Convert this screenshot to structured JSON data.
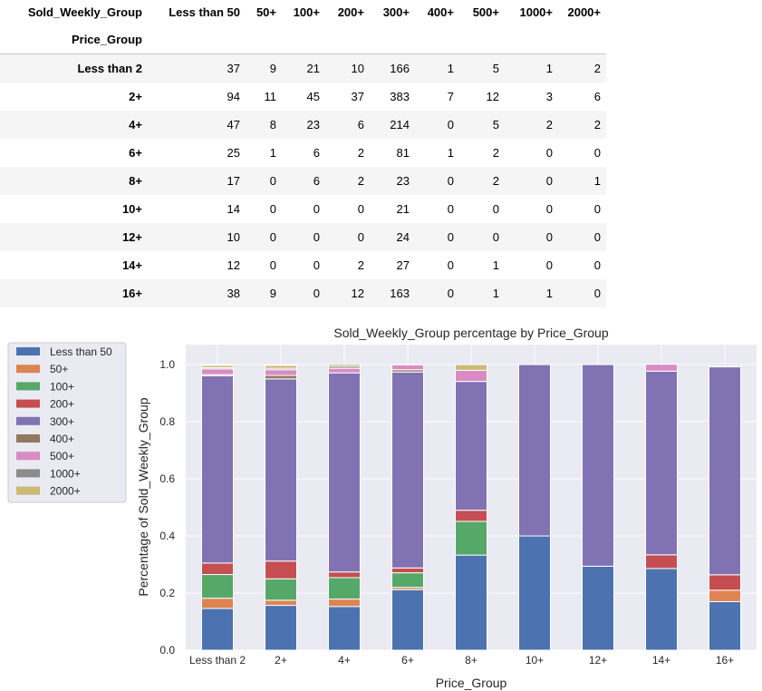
{
  "table": {
    "columns_name": "Sold_Weekly_Group",
    "index_name": "Price_Group",
    "columns": [
      "Less than 50",
      "50+",
      "100+",
      "200+",
      "300+",
      "400+",
      "500+",
      "1000+",
      "2000+"
    ],
    "rows": [
      {
        "label": "Less than 2",
        "values": [
          "37",
          "9",
          "21",
          "10",
          "166",
          "1",
          "5",
          "1",
          "2"
        ]
      },
      {
        "label": "2+",
        "values": [
          "94",
          "11",
          "45",
          "37",
          "383",
          "7",
          "12",
          "3",
          "6"
        ]
      },
      {
        "label": "4+",
        "values": [
          "47",
          "8",
          "23",
          "6",
          "214",
          "0",
          "5",
          "2",
          "2"
        ]
      },
      {
        "label": "6+",
        "values": [
          "25",
          "1",
          "6",
          "2",
          "81",
          "1",
          "2",
          "0",
          "0"
        ]
      },
      {
        "label": "8+",
        "values": [
          "17",
          "0",
          "6",
          "2",
          "23",
          "0",
          "2",
          "0",
          "1"
        ]
      },
      {
        "label": "10+",
        "values": [
          "14",
          "0",
          "0",
          "0",
          "21",
          "0",
          "0",
          "0",
          "0"
        ]
      },
      {
        "label": "12+",
        "values": [
          "10",
          "0",
          "0",
          "0",
          "24",
          "0",
          "0",
          "0",
          "0"
        ]
      },
      {
        "label": "14+",
        "values": [
          "12",
          "0",
          "0",
          "2",
          "27",
          "0",
          "1",
          "0",
          "0"
        ]
      },
      {
        "label": "16+",
        "values": [
          "38",
          "9",
          "0",
          "12",
          "163",
          "0",
          "1",
          "1",
          "0"
        ]
      }
    ]
  },
  "chart_data": {
    "type": "bar",
    "stacked": true,
    "title": "Sold_Weekly_Group percentage by Price_Group",
    "xlabel": "Price_Group",
    "ylabel": "Percentage of Sold_Weekly_Group",
    "ylim": [
      0,
      1.07
    ],
    "yticks": [
      "0.0",
      "0.2",
      "0.4",
      "0.6",
      "0.8",
      "1.0"
    ],
    "grid": true,
    "legend_position": "outside-left",
    "categories": [
      "Less than 2",
      "2+",
      "4+",
      "6+",
      "8+",
      "10+",
      "12+",
      "14+",
      "16+"
    ],
    "series": [
      {
        "name": "Less than 50",
        "color": "#4c72b0",
        "values": [
          0.146,
          0.157,
          0.153,
          0.212,
          0.333,
          0.4,
          0.294,
          0.286,
          0.17
        ]
      },
      {
        "name": "50+",
        "color": "#dd8452",
        "values": [
          0.036,
          0.018,
          0.026,
          0.008,
          0.0,
          0.0,
          0.0,
          0.0,
          0.04
        ]
      },
      {
        "name": "100+",
        "color": "#55a868",
        "values": [
          0.083,
          0.075,
          0.075,
          0.051,
          0.118,
          0.0,
          0.0,
          0.0,
          0.0
        ]
      },
      {
        "name": "200+",
        "color": "#c44e52",
        "values": [
          0.04,
          0.062,
          0.02,
          0.017,
          0.039,
          0.0,
          0.0,
          0.048,
          0.054
        ]
      },
      {
        "name": "300+",
        "color": "#8172b3",
        "values": [
          0.656,
          0.638,
          0.697,
          0.686,
          0.451,
          0.6,
          0.706,
          0.643,
          0.728
        ]
      },
      {
        "name": "400+",
        "color": "#937860",
        "values": [
          0.004,
          0.012,
          0.0,
          0.008,
          0.0,
          0.0,
          0.0,
          0.0,
          0.0
        ]
      },
      {
        "name": "500+",
        "color": "#da8bc3",
        "values": [
          0.02,
          0.02,
          0.016,
          0.017,
          0.039,
          0.0,
          0.0,
          0.024,
          0.004
        ]
      },
      {
        "name": "1000+",
        "color": "#8c8c8c",
        "values": [
          0.004,
          0.005,
          0.007,
          0.0,
          0.0,
          0.0,
          0.0,
          0.0,
          0.004
        ]
      },
      {
        "name": "2000+",
        "color": "#ccb974",
        "values": [
          0.008,
          0.01,
          0.007,
          0.0,
          0.02,
          0.0,
          0.0,
          0.0,
          0.0
        ]
      }
    ]
  }
}
